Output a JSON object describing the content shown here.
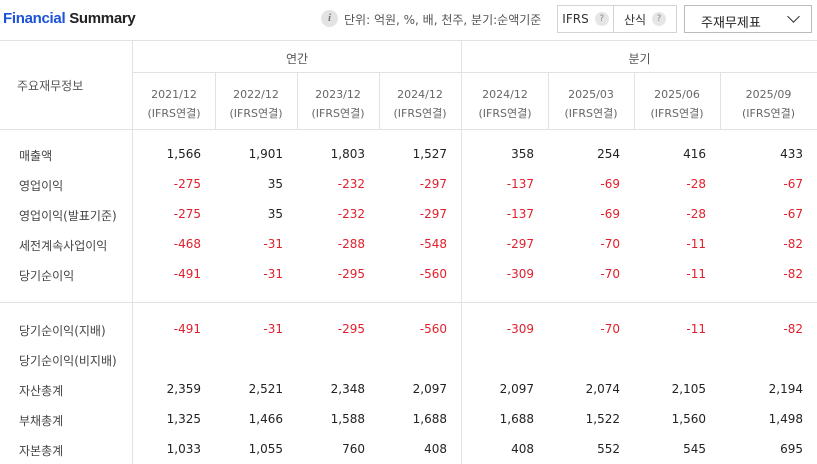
{
  "header": {
    "title_part1": "Financial",
    "title_part2": " Summary",
    "unit_text": "단위: 억원, %, 배, 천주, 분기:순액기준",
    "ifrs_label": "IFRS",
    "formula_label": "산식",
    "help_glyph": "?",
    "info_glyph": "i",
    "statement_select": "주재무제표"
  },
  "table": {
    "corner_label": "주요재무정보",
    "groups": {
      "annual": "연간",
      "quarterly": "분기"
    },
    "columns": [
      {
        "period": "2021/12",
        "basis": "(IFRS연결)"
      },
      {
        "period": "2022/12",
        "basis": "(IFRS연결)"
      },
      {
        "period": "2023/12",
        "basis": "(IFRS연결)"
      },
      {
        "period": "2024/12",
        "basis": "(IFRS연결)"
      },
      {
        "period": "2024/12",
        "basis": "(IFRS연결)"
      },
      {
        "period": "2025/03",
        "basis": "(IFRS연결)"
      },
      {
        "period": "2025/06",
        "basis": "(IFRS연결)"
      },
      {
        "period": "2025/09",
        "basis": "(IFRS연결)"
      }
    ],
    "rows": [
      {
        "label": "매출액",
        "values": [
          "1,566",
          "1,901",
          "1,803",
          "1,527",
          "358",
          "254",
          "416",
          "433"
        ]
      },
      {
        "label": "영업이익",
        "values": [
          "-275",
          "35",
          "-232",
          "-297",
          "-137",
          "-69",
          "-28",
          "-67"
        ]
      },
      {
        "label": "영업이익(발표기준)",
        "values": [
          "-275",
          "35",
          "-232",
          "-297",
          "-137",
          "-69",
          "-28",
          "-67"
        ]
      },
      {
        "label": "세전계속사업이익",
        "values": [
          "-468",
          "-31",
          "-288",
          "-548",
          "-297",
          "-70",
          "-11",
          "-82"
        ]
      },
      {
        "label": "당기순이익",
        "values": [
          "-491",
          "-31",
          "-295",
          "-560",
          "-309",
          "-70",
          "-11",
          "-82"
        ]
      },
      {
        "label": "당기순이익(지배)",
        "values": [
          "-491",
          "-31",
          "-295",
          "-560",
          "-309",
          "-70",
          "-11",
          "-82"
        ]
      },
      {
        "label": "당기순이익(비지배)",
        "values": [
          "",
          "",
          "",
          "",
          "",
          "",
          "",
          ""
        ]
      },
      {
        "label": "자산총계",
        "values": [
          "2,359",
          "2,521",
          "2,348",
          "2,097",
          "2,097",
          "2,074",
          "2,105",
          "2,194"
        ]
      },
      {
        "label": "부채총계",
        "values": [
          "1,325",
          "1,466",
          "1,588",
          "1,688",
          "1,688",
          "1,522",
          "1,560",
          "1,498"
        ]
      },
      {
        "label": "자본총계",
        "values": [
          "1,033",
          "1,055",
          "760",
          "408",
          "408",
          "552",
          "545",
          "695"
        ]
      }
    ]
  },
  "colors": {
    "brand_blue": "#1a52d8",
    "negative_red": "#e0202d"
  }
}
